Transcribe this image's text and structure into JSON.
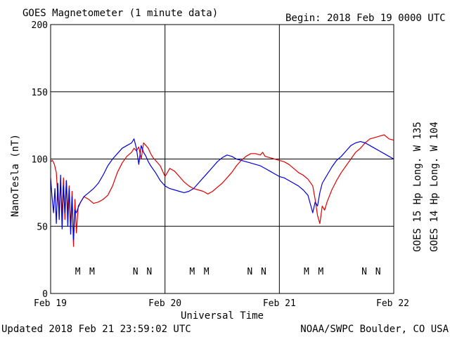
{
  "header": {
    "title": "GOES Magnetometer (1 minute data)",
    "begin": "Begin:  2018 Feb 19 0000 UTC"
  },
  "footer": {
    "updated": "Updated 2018 Feb 21 23:59:02 UTC",
    "source": "NOAA/SWPC Boulder, CO USA"
  },
  "colors": {
    "goes15": "#e00000",
    "goes14": "#0000e0",
    "axis": "#000000",
    "background": "#ffffff"
  },
  "chart_data": {
    "type": "line",
    "xlabel": "Universal Time",
    "ylabel": "NanoTesla (nT)",
    "xlim": [
      0,
      72
    ],
    "x_units": "hours since 2018 Feb 19 0000 UTC",
    "ylim": [
      0,
      200
    ],
    "yticks": [
      0,
      50,
      100,
      150,
      200
    ],
    "xticks": [
      {
        "x": 0,
        "label": "Feb 19"
      },
      {
        "x": 24,
        "label": "Feb 20"
      },
      {
        "x": 48,
        "label": "Feb 21"
      },
      {
        "x": 72,
        "label": "Feb 22"
      }
    ],
    "grid": true,
    "legend": [
      {
        "name": "GOES 15 Hp  Long. W 135",
        "color": "#e00000"
      },
      {
        "name": "GOES 14 Hp  Long. W 104",
        "color": "#0000e0"
      }
    ],
    "markers": [
      {
        "label": "M",
        "x": 5.7,
        "color": "#0000e0"
      },
      {
        "label": "M",
        "x": 8.7,
        "color": "#e00000"
      },
      {
        "label": "N",
        "x": 17.8,
        "color": "#0000e0"
      },
      {
        "label": "N",
        "x": 20.7,
        "color": "#e00000"
      },
      {
        "label": "M",
        "x": 29.7,
        "color": "#0000e0"
      },
      {
        "label": "M",
        "x": 32.7,
        "color": "#e00000"
      },
      {
        "label": "N",
        "x": 41.8,
        "color": "#0000e0"
      },
      {
        "label": "N",
        "x": 44.7,
        "color": "#e00000"
      },
      {
        "label": "M",
        "x": 53.7,
        "color": "#0000e0"
      },
      {
        "label": "M",
        "x": 56.7,
        "color": "#e00000"
      },
      {
        "label": "N",
        "x": 65.8,
        "color": "#0000e0"
      },
      {
        "label": "N",
        "x": 68.7,
        "color": "#e00000"
      }
    ],
    "series": [
      {
        "name": "GOES 15 Hp  Long. W 135",
        "color": "#e00000",
        "x": [
          0,
          0.4,
          0.8,
          1.2,
          1.5,
          1.8,
          2.1,
          2.4,
          2.7,
          3.0,
          3.3,
          3.6,
          3.9,
          4.2,
          4.5,
          4.8,
          5.1,
          5.4,
          5.8,
          6.3,
          7,
          8,
          9,
          10,
          11,
          12,
          13,
          14,
          15,
          16,
          17,
          17.5,
          18,
          18.5,
          19,
          19.5,
          20,
          20.5,
          21,
          21.5,
          22,
          23,
          24,
          25,
          26,
          27,
          28,
          29,
          30,
          31,
          32,
          33,
          34,
          35,
          36,
          37,
          38,
          39,
          40,
          41,
          42,
          43,
          44,
          44.5,
          45,
          46,
          47,
          48,
          49,
          50,
          51,
          52,
          53,
          54,
          55,
          55.5,
          56,
          56.5,
          57,
          57.5,
          58,
          59,
          60,
          61,
          62,
          63,
          64,
          65,
          66,
          67,
          68,
          69,
          70,
          71,
          72
        ],
        "values": [
          98,
          99,
          96,
          90,
          72,
          62,
          82,
          58,
          86,
          55,
          84,
          60,
          80,
          48,
          76,
          35,
          70,
          45,
          65,
          68,
          72,
          70,
          67,
          68,
          70,
          73,
          80,
          90,
          97,
          102,
          105,
          108,
          106,
          109,
          100,
          112,
          110,
          108,
          104,
          101,
          99,
          95,
          87,
          93,
          91,
          87,
          83,
          80,
          78,
          77,
          76,
          74,
          76,
          79,
          82,
          86,
          90,
          95,
          99,
          102,
          104,
          104,
          103,
          105,
          102,
          101,
          100,
          99,
          98,
          96,
          93,
          90,
          88,
          85,
          80,
          70,
          58,
          52,
          65,
          62,
          68,
          77,
          84,
          90,
          95,
          100,
          105,
          108,
          112,
          115,
          116,
          117,
          118,
          115,
          114
        ]
      },
      {
        "name": "GOES 14 Hp  Long. W 104",
        "color": "#0000e0",
        "x": [
          0,
          0.3,
          0.6,
          0.9,
          1.2,
          1.5,
          1.8,
          2.1,
          2.4,
          2.7,
          3.0,
          3.3,
          3.6,
          3.9,
          4.2,
          4.5,
          4.8,
          5.1,
          5.4,
          5.8,
          6.3,
          7,
          8,
          9,
          10,
          11,
          12,
          13,
          14,
          15,
          16,
          17,
          17.5,
          18,
          18.5,
          19,
          19.5,
          20,
          20.5,
          21,
          22,
          23,
          24,
          25,
          26,
          27,
          28,
          29,
          30,
          31,
          32,
          33,
          34,
          35,
          36,
          37,
          38,
          39,
          40,
          41,
          42,
          43,
          44,
          45,
          46,
          47,
          48,
          49,
          50,
          51,
          52,
          53,
          54,
          55,
          55.5,
          56,
          56.5,
          57,
          58,
          59,
          60,
          61,
          62,
          63,
          64,
          65,
          66,
          67,
          68,
          69,
          70,
          71,
          72
        ],
        "values": [
          86,
          72,
          60,
          78,
          52,
          82,
          55,
          88,
          48,
          80,
          60,
          84,
          50,
          78,
          44,
          72,
          40,
          62,
          60,
          64,
          68,
          72,
          75,
          78,
          82,
          88,
          95,
          100,
          104,
          108,
          110,
          112,
          115,
          108,
          96,
          110,
          105,
          102,
          98,
          95,
          90,
          84,
          80,
          78,
          77,
          76,
          75,
          76,
          78,
          82,
          86,
          90,
          94,
          98,
          101,
          103,
          102,
          100,
          99,
          98,
          97,
          96,
          95,
          93,
          91,
          89,
          87,
          86,
          84,
          82,
          80,
          77,
          73,
          60,
          68,
          65,
          75,
          82,
          88,
          94,
          99,
          102,
          106,
          110,
          112,
          113,
          112,
          110,
          108,
          106,
          104,
          102,
          100
        ]
      }
    ]
  }
}
